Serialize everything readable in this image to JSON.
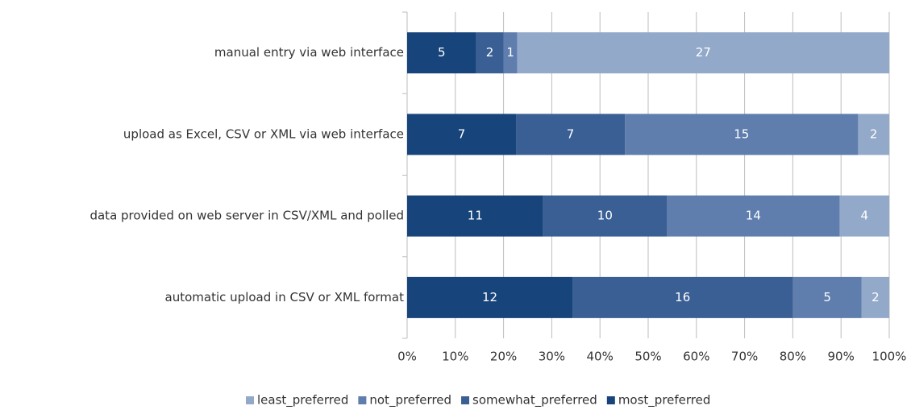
{
  "chart_data": {
    "type": "stacked-bar-100",
    "orientation": "horizontal",
    "categories": [
      "manual entry via web interface",
      "upload as Excel, CSV or XML via web interface",
      "data provided on web server in CSV/XML and polled",
      "automatic upload in CSV or XML format"
    ],
    "series": [
      {
        "name": "least_preferred",
        "color": "#93a9c9",
        "values": [
          27,
          2,
          4,
          2
        ]
      },
      {
        "name": "not_preferred",
        "color": "#5f7eae",
        "values": [
          1,
          15,
          14,
          5
        ]
      },
      {
        "name": "somewhat_preferred",
        "color": "#3a5f94",
        "values": [
          2,
          7,
          10,
          16
        ]
      },
      {
        "name": "most_preferred",
        "color": "#17447a",
        "values": [
          5,
          7,
          11,
          12
        ]
      }
    ],
    "xlim": [
      0,
      100
    ],
    "xticks": [
      {
        "value": 0,
        "label": "0%"
      },
      {
        "value": 10,
        "label": "10%"
      },
      {
        "value": 20,
        "label": "20%"
      },
      {
        "value": 30,
        "label": "30%"
      },
      {
        "value": 40,
        "label": "40%"
      },
      {
        "value": 50,
        "label": "50%"
      },
      {
        "value": 60,
        "label": "60%"
      },
      {
        "value": 70,
        "label": "70%"
      },
      {
        "value": 80,
        "label": "80%"
      },
      {
        "value": 90,
        "label": "90%"
      },
      {
        "value": 100,
        "label": "100%"
      }
    ],
    "grid": true,
    "legend": "bottom"
  }
}
